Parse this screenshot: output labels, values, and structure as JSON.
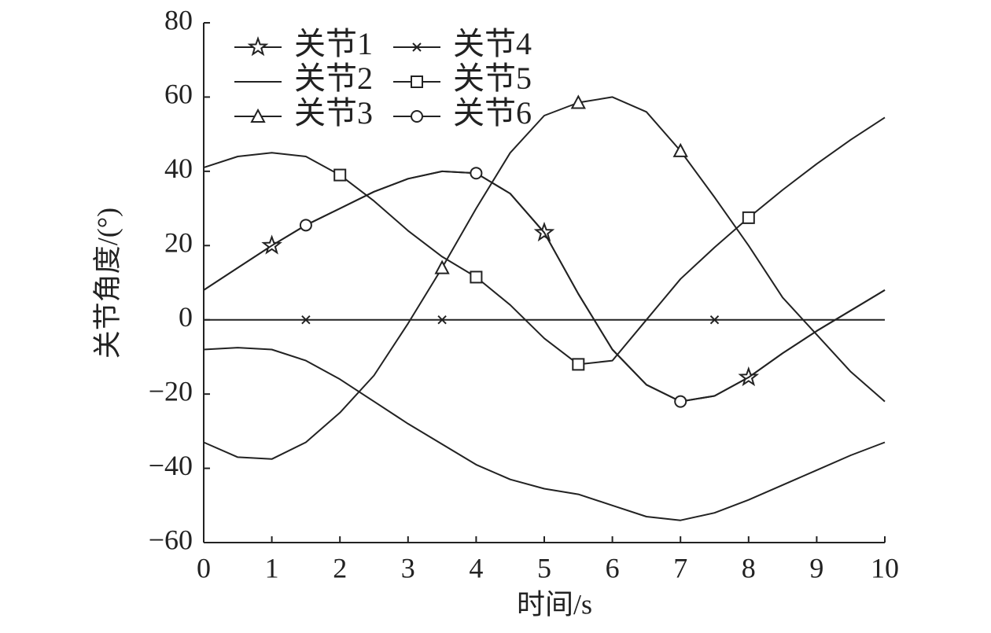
{
  "chart_data": {
    "type": "line",
    "xlabel": "时间/s",
    "ylabel": "关节角度/(°)",
    "x": [
      0,
      0.5,
      1,
      1.5,
      2,
      2.5,
      3,
      3.5,
      4,
      4.5,
      5,
      5.5,
      6,
      6.5,
      7,
      7.5,
      8,
      8.5,
      9,
      9.5,
      10
    ],
    "series": [
      {
        "name": "关节1",
        "color": "#222222",
        "marker": "star",
        "marker_x": [
          1,
          5,
          8
        ],
        "values": [
          8,
          14,
          20,
          25.5,
          30,
          34.5,
          38,
          40,
          39.5,
          34,
          23.5,
          7,
          -8,
          -17.5,
          -22,
          -20.5,
          -15.5,
          -9,
          -3,
          2.5,
          8
        ]
      },
      {
        "name": "关节2",
        "color": "#222222",
        "marker": "none",
        "marker_x": [],
        "values": [
          -8,
          -7.5,
          -8,
          -11,
          -16,
          -22,
          -28,
          -33.5,
          -39,
          -43,
          -45.5,
          -47,
          -50,
          -53,
          -54,
          -52,
          -48.5,
          -44.5,
          -40.5,
          -36.5,
          -33
        ]
      },
      {
        "name": "关节3",
        "color": "#222222",
        "marker": "triangle",
        "marker_x": [
          3.5,
          5.5,
          7
        ],
        "values": [
          -33,
          -37,
          -37.5,
          -33,
          -25,
          -15,
          -1,
          14,
          30,
          45,
          55,
          58.5,
          60,
          56,
          45.5,
          33,
          20,
          6,
          -4,
          -14,
          -22
        ]
      },
      {
        "name": "关节4",
        "color": "#222222",
        "marker": "x",
        "marker_x": [
          1.5,
          3.5,
          7.5
        ],
        "values": [
          0,
          0,
          0,
          0,
          0,
          0,
          0,
          0,
          0,
          0,
          0,
          0,
          0,
          0,
          0,
          0,
          0,
          0,
          0,
          0,
          0
        ]
      },
      {
        "name": "关节5",
        "color": "#222222",
        "marker": "square",
        "marker_x": [
          2,
          4,
          5.5,
          8
        ],
        "values": [
          41,
          44,
          45,
          44,
          39,
          32,
          24,
          17,
          11.5,
          4,
          -5,
          -12,
          -11,
          0,
          11,
          19.5,
          27.5,
          35,
          42,
          48.5,
          54.5
        ]
      },
      {
        "name": "关节6",
        "color": "#222222",
        "marker": "circle",
        "marker_x": [
          1.5,
          4,
          7
        ],
        "values": [
          8,
          14,
          20,
          25.5,
          30,
          34.5,
          38,
          40,
          39.5,
          34,
          23.5,
          7,
          -8,
          -17.5,
          -22,
          -20.5,
          -15.5,
          -9,
          -3,
          2.5,
          8
        ]
      }
    ],
    "xlim": [
      0,
      10
    ],
    "xticks": [
      0,
      1,
      2,
      3,
      4,
      5,
      6,
      7,
      8,
      9,
      10
    ],
    "ylim": [
      -60,
      80
    ],
    "yticks": [
      {
        "value": -60,
        "label": "−60"
      },
      {
        "value": -40,
        "label": "−40"
      },
      {
        "value": -20,
        "label": "−20"
      },
      0,
      20,
      40,
      60,
      80
    ],
    "grid": false,
    "legend": "upper left"
  }
}
